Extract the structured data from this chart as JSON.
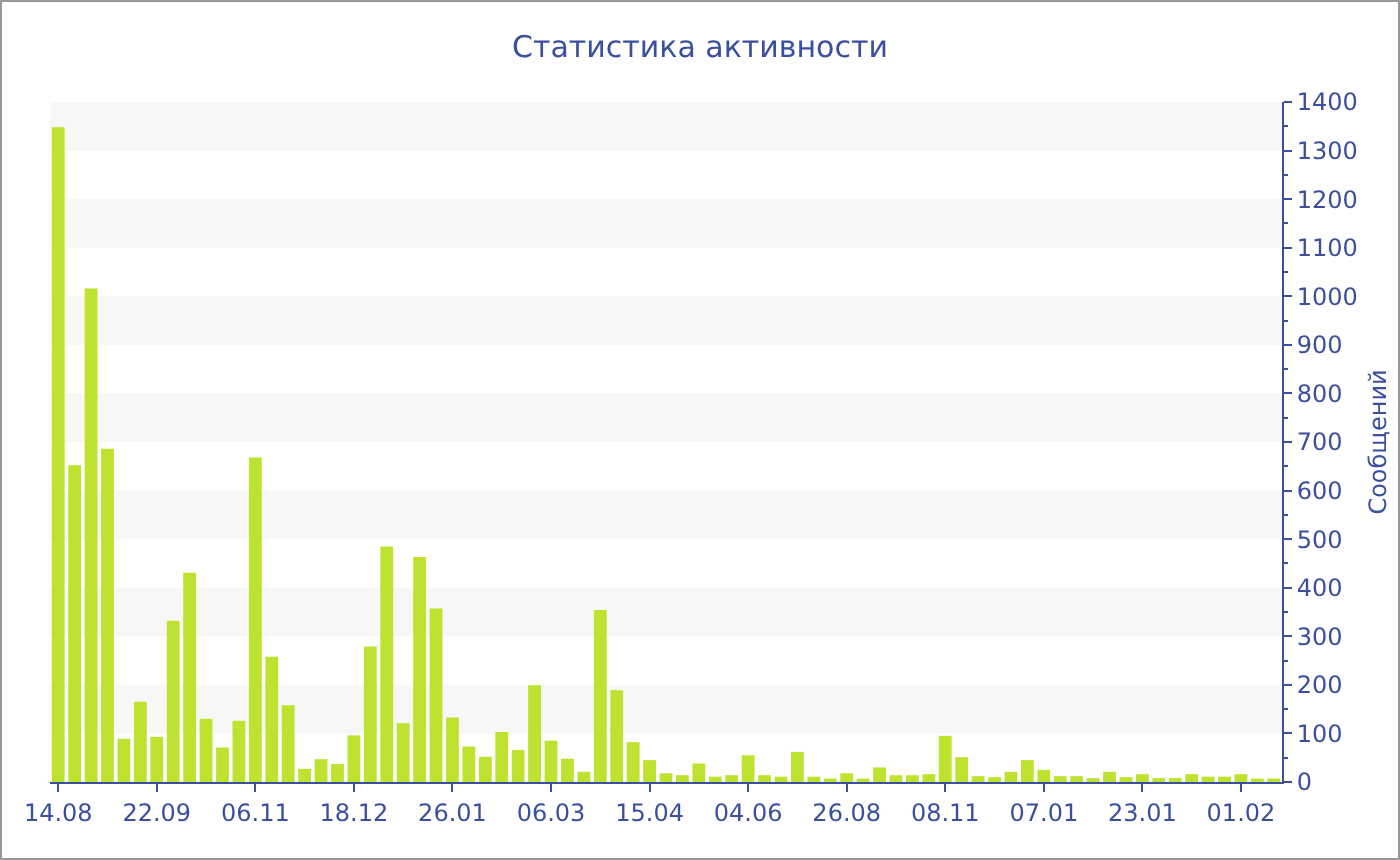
{
  "chart_data": {
    "type": "bar",
    "title": "Статистика активности",
    "ylabel": "Сообщений",
    "categories": [
      "14.08",
      null,
      null,
      null,
      null,
      null,
      "22.09",
      null,
      null,
      null,
      null,
      null,
      "06.11",
      null,
      null,
      null,
      null,
      null,
      "18.12",
      null,
      null,
      null,
      null,
      null,
      "26.01",
      null,
      null,
      null,
      null,
      null,
      "06.03",
      null,
      null,
      null,
      null,
      null,
      "15.04",
      null,
      null,
      null,
      null,
      null,
      "04.06",
      null,
      null,
      null,
      null,
      null,
      "26.08",
      null,
      null,
      null,
      null,
      null,
      "08.11",
      null,
      null,
      null,
      null,
      null,
      "07.01",
      null,
      null,
      null,
      null,
      null,
      "23.01",
      null,
      null,
      null,
      null,
      null,
      "01.02",
      null,
      null
    ],
    "values": [
      1348,
      652,
      1016,
      686,
      89,
      165,
      93,
      332,
      431,
      130,
      71,
      126,
      668,
      258,
      158,
      27,
      47,
      37,
      96,
      279,
      485,
      121,
      463,
      357,
      133,
      73,
      52,
      103,
      66,
      199,
      85,
      48,
      21,
      354,
      189,
      82,
      45,
      18,
      14,
      38,
      11,
      14,
      55,
      14,
      11,
      62,
      11,
      7,
      18,
      7,
      30,
      14,
      14,
      16,
      95,
      51,
      12,
      10,
      21,
      45,
      25,
      12,
      12,
      8,
      21,
      10,
      16,
      8,
      8,
      16,
      11,
      11,
      16,
      7,
      7
    ],
    "color": "#bde22f",
    "ylim": [
      0,
      1400
    ],
    "yticks": [
      0,
      100,
      200,
      300,
      400,
      500,
      600,
      700,
      800,
      900,
      1000,
      1100,
      1200,
      1300,
      1400
    ],
    "bands": [
      {
        "axis": "y",
        "from": 100,
        "to": 200,
        "color": "#f7f7f7"
      },
      {
        "axis": "y",
        "from": 300,
        "to": 400,
        "color": "#f7f7f7"
      },
      {
        "axis": "y",
        "from": 500,
        "to": 600,
        "color": "#f7f7f7"
      },
      {
        "axis": "y",
        "from": 700,
        "to": 800,
        "color": "#f7f7f7"
      },
      {
        "axis": "y",
        "from": 900,
        "to": 1000,
        "color": "#f7f7f7"
      },
      {
        "axis": "y",
        "from": 1100,
        "to": 1200,
        "color": "#f7f7f7"
      },
      {
        "axis": "y",
        "from": 1300,
        "to": 1400,
        "color": "#f7f7f7"
      }
    ],
    "legend": false
  }
}
